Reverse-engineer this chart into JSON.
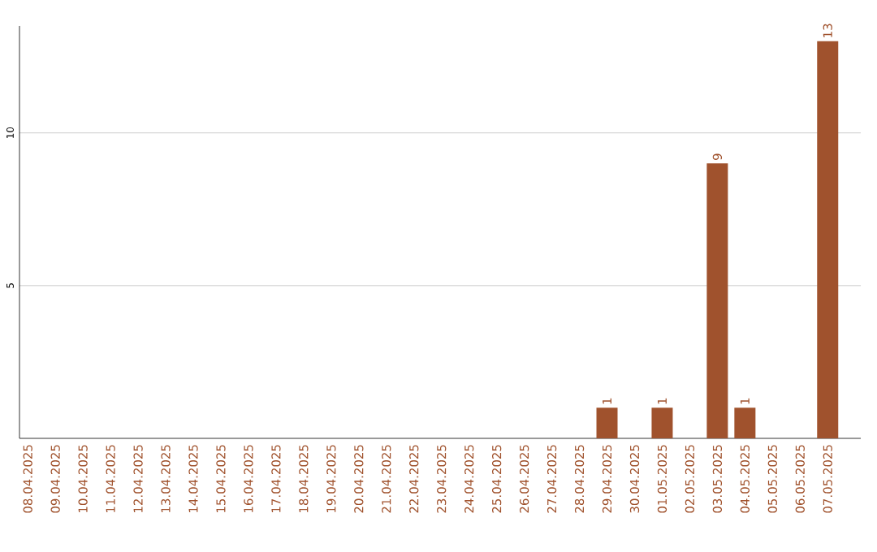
{
  "chart_data": {
    "type": "bar",
    "categories": [
      "08.04.2025",
      "09.04.2025",
      "10.04.2025",
      "11.04.2025",
      "12.04.2025",
      "13.04.2025",
      "14.04.2025",
      "15.04.2025",
      "16.04.2025",
      "17.04.2025",
      "18.04.2025",
      "19.04.2025",
      "20.04.2025",
      "21.04.2025",
      "22.04.2025",
      "23.04.2025",
      "24.04.2025",
      "25.04.2025",
      "26.04.2025",
      "27.04.2025",
      "28.04.2025",
      "29.04.2025",
      "30.04.2025",
      "01.05.2025",
      "02.05.2025",
      "03.05.2025",
      "04.05.2025",
      "05.05.2025",
      "06.05.2025",
      "07.05.2025"
    ],
    "values": [
      0,
      0,
      0,
      0,
      0,
      0,
      0,
      0,
      0,
      0,
      0,
      0,
      0,
      0,
      0,
      0,
      0,
      0,
      0,
      0,
      0,
      1,
      0,
      1,
      0,
      9,
      1,
      0,
      0,
      13
    ],
    "value_labels": [
      null,
      null,
      null,
      null,
      null,
      null,
      null,
      null,
      null,
      null,
      null,
      null,
      null,
      null,
      null,
      null,
      null,
      null,
      null,
      null,
      null,
      "1",
      null,
      "1",
      null,
      "9",
      "1",
      null,
      null,
      "13"
    ],
    "color": "#a0522d",
    "ylim": [
      0,
      13.5
    ],
    "yticks": [
      5,
      10
    ],
    "grid": "y"
  }
}
